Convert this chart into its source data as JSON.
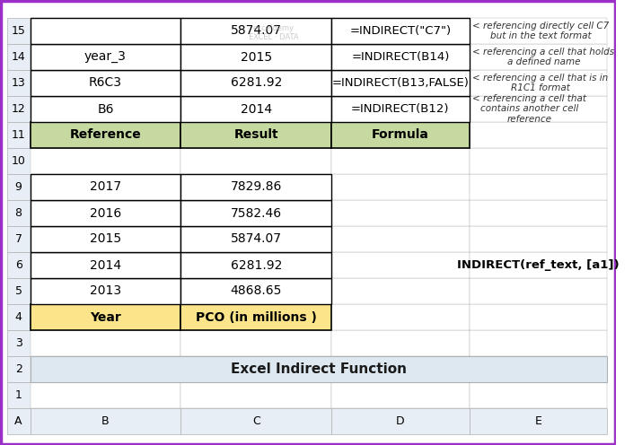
{
  "title": "Excel Indirect Function",
  "title_bg": "#dde8f0",
  "col_headers": [
    "A",
    "B",
    "C",
    "D",
    "E"
  ],
  "row_numbers": [
    "1",
    "2",
    "3",
    "4",
    "5",
    "6",
    "7",
    "8",
    "9",
    "10",
    "11",
    "12",
    "13",
    "14",
    "15"
  ],
  "table1_headers": [
    "Year",
    "PCO (in millions )"
  ],
  "table1_header_bg": "#fce48a",
  "table1_data": [
    [
      "2013",
      "4868.65"
    ],
    [
      "2014",
      "6281.92"
    ],
    [
      "2015",
      "5874.07"
    ],
    [
      "2016",
      "7582.46"
    ],
    [
      "2017",
      "7829.86"
    ]
  ],
  "table2_headers": [
    "Reference",
    "Result",
    "Formula"
  ],
  "table2_header_bg": "#c6d9a0",
  "table2_data": [
    [
      "B6",
      "2014",
      "=INDIRECT(B12)"
    ],
    [
      "R6C3",
      "6281.92",
      "=INDIRECT(B13,FALSE)"
    ],
    [
      "year_3",
      "2015",
      "=INDIRECT(B14)"
    ],
    [
      "",
      "5874.07",
      "=INDIRECT(\"C7\")"
    ]
  ],
  "indirect_formula": "INDIRECT(ref_text, [a1])",
  "side_notes": [
    "< referencing a cell that\ncontains another cell\nreference",
    "< referencing a cell that is in\nR1C1 format",
    "< referencing a cell that holds\na defined name",
    "< referencing directly cell C7\nbut in the text format"
  ],
  "border_color": "#000000",
  "grid_line_color": "#b0b0b0",
  "header_row_bg": "#e8eef5",
  "bg_color": "#ffffff",
  "outer_border_color": "#9b30c8"
}
